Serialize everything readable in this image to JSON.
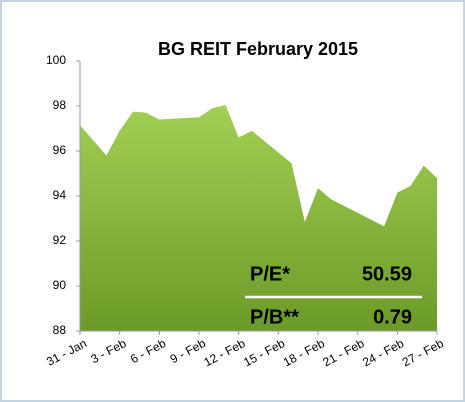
{
  "chart_data": {
    "type": "area",
    "title": "BG REIT February 2015",
    "x": [
      0,
      2,
      3,
      4,
      5,
      6,
      9,
      10,
      11,
      12,
      13,
      16,
      17,
      18,
      19,
      23,
      24,
      25,
      26,
      27
    ],
    "series": [
      {
        "color": "#86b83a",
        "values": [
          97.15,
          95.8,
          96.9,
          97.75,
          97.7,
          97.4,
          97.5,
          97.9,
          98.05,
          96.6,
          96.9,
          95.45,
          92.85,
          94.35,
          93.85,
          92.65,
          94.15,
          94.45,
          95.35,
          94.8
        ]
      }
    ],
    "xlim": [
      0,
      27
    ],
    "xticks": [
      {
        "value": 0,
        "label": "31 - Jan"
      },
      {
        "value": 3,
        "label": "3 - Feb"
      },
      {
        "value": 6,
        "label": "6 - Feb"
      },
      {
        "value": 9,
        "label": "9 - Feb"
      },
      {
        "value": 12,
        "label": "12 - Feb"
      },
      {
        "value": 15,
        "label": "15 - Feb"
      },
      {
        "value": 18,
        "label": "18 - Feb"
      },
      {
        "value": 21,
        "label": "21 - Feb"
      },
      {
        "value": 24,
        "label": "24 - Feb"
      },
      {
        "value": 27,
        "label": "27 - Feb"
      }
    ],
    "ylim": [
      88,
      100
    ],
    "yticks": [
      88,
      90,
      92,
      94,
      96,
      98,
      100
    ],
    "grid": false,
    "annotations": [
      {
        "label": "P/E*",
        "value": "50.59"
      },
      {
        "label": "P/B**",
        "value": "0.79"
      }
    ]
  }
}
